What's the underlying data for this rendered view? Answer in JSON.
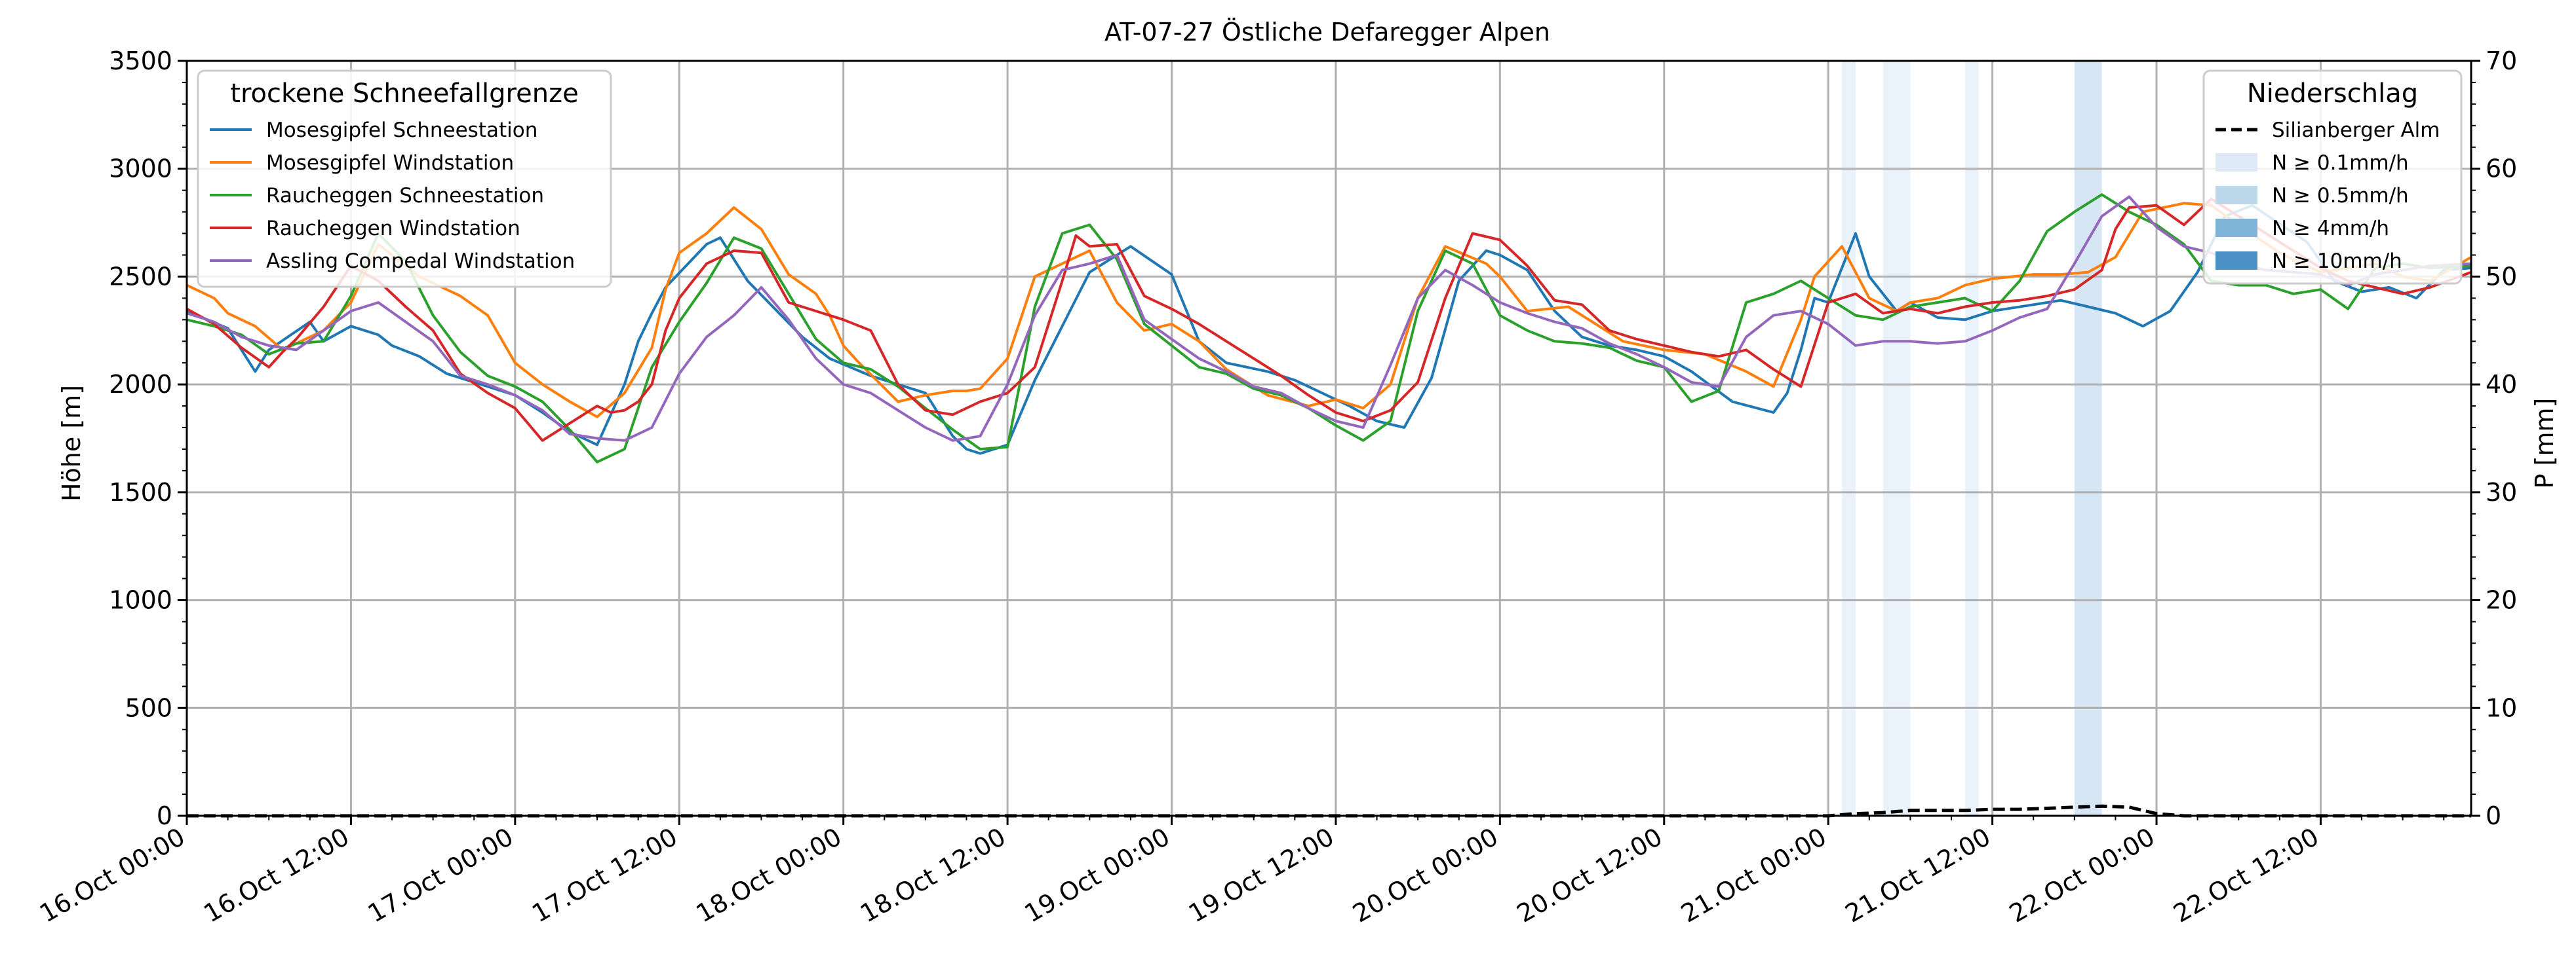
{
  "chart_data": {
    "type": "line",
    "title": "AT-07-27 Östliche Defaregger Alpen",
    "ylabel": "Höhe [m]",
    "y2label": "P [mm]",
    "ylim": [
      0,
      3500
    ],
    "y2lim": [
      0,
      70
    ],
    "yticks": [
      0,
      500,
      1000,
      1500,
      2000,
      2500,
      3000,
      3500
    ],
    "y2ticks": [
      0,
      10,
      20,
      30,
      40,
      50,
      60,
      70
    ],
    "xlim_hours": [
      0,
      167
    ],
    "xtick_labels": [
      "16.Oct 00:00",
      "16.Oct 12:00",
      "17.Oct 00:00",
      "17.Oct 12:00",
      "18.Oct 00:00",
      "18.Oct 12:00",
      "19.Oct 00:00",
      "19.Oct 12:00",
      "20.Oct 00:00",
      "20.Oct 12:00",
      "21.Oct 00:00",
      "21.Oct 12:00",
      "22.Oct 00:00",
      "22.Oct 12:00"
    ],
    "grid": true,
    "legend_left": {
      "title": "trockene Schneefallgrenze",
      "placement": "top-left"
    },
    "legend_right": {
      "title": "Niederschlag",
      "placement": "top-right",
      "items": [
        {
          "label": "Silianberger Alm",
          "style": "dashed",
          "color": "#000000"
        },
        {
          "label": "N ≥ 0.1mm/h",
          "color": "#deebf7"
        },
        {
          "label": "N ≥ 0.5mm/h",
          "color": "#bcd6ea"
        },
        {
          "label": "N ≥ 4mm/h",
          "color": "#7fb3d8"
        },
        {
          "label": "N ≥ 10mm/h",
          "color": "#4a90c4"
        }
      ]
    },
    "series": [
      {
        "name": "Mosesgipfel Schneestation",
        "color": "#1f77b4",
        "x": [
          0,
          3,
          5,
          6,
          9,
          10,
          12,
          14,
          15,
          17,
          19,
          21,
          22,
          24,
          26,
          28,
          30,
          32,
          33,
          34,
          35,
          38,
          39,
          41,
          45,
          47,
          50,
          54,
          56,
          57,
          58,
          60,
          62,
          66,
          69,
          72,
          74,
          76,
          79,
          81,
          83,
          85,
          87,
          89,
          91,
          93,
          95,
          96,
          98,
          100,
          102,
          104,
          106,
          108,
          110,
          113,
          116,
          117,
          118,
          119,
          120,
          122,
          123,
          124,
          125,
          126,
          128,
          130,
          132,
          135,
          137,
          139,
          141,
          143,
          145,
          147,
          149,
          151,
          155,
          157,
          159,
          161,
          163,
          165,
          167
        ],
        "y": [
          2340,
          2260,
          2060,
          2160,
          2290,
          2200,
          2270,
          2230,
          2180,
          2130,
          2050,
          2010,
          1990,
          1950,
          1870,
          1780,
          1720,
          2000,
          2200,
          2330,
          2450,
          2650,
          2680,
          2480,
          2220,
          2120,
          2040,
          1960,
          1760,
          1700,
          1680,
          1720,
          2020,
          2520,
          2640,
          2510,
          2200,
          2100,
          2060,
          2020,
          1960,
          1900,
          1830,
          1800,
          2030,
          2480,
          2620,
          2600,
          2530,
          2340,
          2220,
          2180,
          2160,
          2130,
          2060,
          1920,
          1870,
          1960,
          2160,
          2400,
          2380,
          2700,
          2500,
          2420,
          2340,
          2380,
          2310,
          2300,
          2340,
          2370,
          2390,
          2360,
          2330,
          2270,
          2340,
          2520,
          2780,
          2830,
          2660,
          2480,
          2430,
          2450,
          2400,
          2530,
          2540
        ]
      },
      {
        "name": "Mosesgipfel Windstation",
        "color": "#ff7f0e",
        "x": [
          0,
          2,
          3,
          5,
          7,
          10,
          12,
          14,
          17,
          20,
          22,
          24,
          26,
          28,
          30,
          32,
          34,
          35,
          36,
          38,
          40,
          42,
          44,
          46,
          47,
          48,
          49,
          52,
          54,
          56,
          57,
          58,
          60,
          62,
          66,
          68,
          70,
          72,
          74,
          76,
          79,
          82,
          84,
          86,
          88,
          90,
          92,
          95,
          96,
          98,
          101,
          105,
          108,
          111,
          114,
          116,
          118,
          119,
          121,
          123,
          125,
          126,
          128,
          130,
          132,
          135,
          137,
          139,
          141,
          143,
          146,
          148,
          150,
          153,
          156,
          158,
          160,
          162,
          164,
          167
        ],
        "y": [
          2460,
          2400,
          2330,
          2270,
          2160,
          2250,
          2380,
          2650,
          2500,
          2410,
          2320,
          2100,
          2000,
          1920,
          1850,
          1960,
          2170,
          2440,
          2610,
          2700,
          2820,
          2720,
          2510,
          2420,
          2320,
          2180,
          2110,
          1920,
          1950,
          1970,
          1970,
          1980,
          2120,
          2500,
          2620,
          2380,
          2250,
          2280,
          2200,
          2070,
          1950,
          1900,
          1930,
          1890,
          2000,
          2400,
          2640,
          2560,
          2500,
          2340,
          2360,
          2200,
          2160,
          2140,
          2060,
          1990,
          2300,
          2500,
          2640,
          2400,
          2340,
          2380,
          2400,
          2460,
          2490,
          2510,
          2510,
          2520,
          2590,
          2800,
          2840,
          2830,
          2740,
          2610,
          2520,
          2540,
          2560,
          2500,
          2480,
          2590
        ]
      },
      {
        "name": "Raucheggen Schneestation",
        "color": "#2ca02c",
        "x": [
          0,
          2,
          4,
          6,
          8,
          10,
          12,
          14,
          16,
          18,
          20,
          22,
          24,
          26,
          28,
          30,
          32,
          34,
          36,
          38,
          40,
          42,
          44,
          46,
          48,
          50,
          52,
          54,
          56,
          58,
          60,
          62,
          64,
          66,
          68,
          70,
          72,
          74,
          76,
          78,
          80,
          82,
          84,
          86,
          88,
          90,
          92,
          94,
          96,
          98,
          100,
          102,
          104,
          106,
          108,
          110,
          112,
          114,
          116,
          118,
          120,
          122,
          124,
          126,
          128,
          130,
          132,
          134,
          136,
          138,
          140,
          142,
          144,
          146,
          148,
          150,
          152,
          154,
          156,
          158,
          160,
          162,
          164,
          167
        ],
        "y": [
          2300,
          2270,
          2230,
          2140,
          2190,
          2200,
          2410,
          2700,
          2570,
          2320,
          2150,
          2040,
          1990,
          1920,
          1790,
          1640,
          1700,
          2080,
          2290,
          2470,
          2680,
          2630,
          2420,
          2210,
          2100,
          2070,
          1990,
          1890,
          1790,
          1700,
          1710,
          2360,
          2700,
          2740,
          2580,
          2280,
          2180,
          2080,
          2050,
          1980,
          1950,
          1890,
          1810,
          1740,
          1830,
          2340,
          2620,
          2560,
          2320,
          2250,
          2200,
          2190,
          2170,
          2110,
          2080,
          1920,
          1970,
          2380,
          2420,
          2480,
          2400,
          2320,
          2300,
          2360,
          2380,
          2400,
          2340,
          2480,
          2710,
          2800,
          2880,
          2800,
          2740,
          2650,
          2480,
          2460,
          2460,
          2420,
          2440,
          2350,
          2540,
          2560,
          2540,
          2550
        ]
      },
      {
        "name": "Raucheggen Windstation",
        "color": "#d62728",
        "x": [
          0,
          2,
          4,
          6,
          7,
          8,
          10,
          12,
          14,
          16,
          18,
          20,
          22,
          24,
          26,
          28,
          30,
          31,
          32,
          33,
          34,
          35,
          36,
          37,
          38,
          40,
          42,
          44,
          46,
          48,
          50,
          52,
          54,
          56,
          58,
          60,
          62,
          64,
          65,
          66,
          68,
          70,
          72,
          74,
          76,
          78,
          80,
          82,
          84,
          86,
          88,
          90,
          92,
          94,
          96,
          98,
          100,
          102,
          104,
          106,
          108,
          110,
          112,
          114,
          116,
          118,
          120,
          122,
          124,
          126,
          128,
          130,
          132,
          134,
          136,
          138,
          140,
          141,
          142,
          144,
          146,
          148,
          150,
          152,
          154,
          156,
          158,
          160,
          162,
          164,
          167
        ],
        "y": [
          2350,
          2280,
          2170,
          2080,
          2150,
          2210,
          2360,
          2550,
          2480,
          2360,
          2250,
          2050,
          1960,
          1890,
          1740,
          1820,
          1900,
          1870,
          1880,
          1920,
          2000,
          2250,
          2400,
          2480,
          2560,
          2620,
          2610,
          2380,
          2340,
          2300,
          2250,
          2000,
          1880,
          1860,
          1920,
          1960,
          2080,
          2480,
          2690,
          2640,
          2650,
          2410,
          2350,
          2280,
          2200,
          2120,
          2040,
          1950,
          1870,
          1830,
          1880,
          2010,
          2400,
          2700,
          2670,
          2550,
          2390,
          2370,
          2250,
          2210,
          2180,
          2150,
          2130,
          2160,
          2070,
          1990,
          2380,
          2420,
          2330,
          2350,
          2330,
          2360,
          2380,
          2390,
          2410,
          2440,
          2530,
          2720,
          2820,
          2830,
          2740,
          2860,
          2780,
          2700,
          2620,
          2540,
          2480,
          2450,
          2420,
          2450,
          2520
        ]
      },
      {
        "name": "Assling Compedal Windstation",
        "color": "#9467bd",
        "x": [
          0,
          2,
          4,
          6,
          8,
          10,
          12,
          14,
          16,
          18,
          20,
          22,
          24,
          26,
          28,
          30,
          32,
          34,
          36,
          38,
          40,
          42,
          44,
          46,
          48,
          50,
          52,
          54,
          56,
          58,
          60,
          62,
          64,
          66,
          68,
          70,
          72,
          74,
          76,
          78,
          80,
          82,
          84,
          86,
          88,
          90,
          92,
          94,
          96,
          98,
          100,
          102,
          104,
          106,
          108,
          110,
          112,
          114,
          116,
          118,
          120,
          122,
          124,
          126,
          128,
          130,
          132,
          134,
          136,
          138,
          140,
          142,
          144,
          146,
          148,
          150,
          152,
          154,
          156,
          158,
          160,
          162,
          164,
          167
        ],
        "y": [
          2330,
          2290,
          2220,
          2180,
          2160,
          2250,
          2340,
          2380,
          2290,
          2200,
          2040,
          2000,
          1950,
          1880,
          1770,
          1750,
          1740,
          1800,
          2050,
          2220,
          2320,
          2450,
          2300,
          2120,
          2000,
          1960,
          1880,
          1800,
          1740,
          1760,
          2000,
          2320,
          2530,
          2560,
          2600,
          2300,
          2210,
          2120,
          2060,
          1990,
          1960,
          1890,
          1830,
          1800,
          2090,
          2400,
          2530,
          2460,
          2380,
          2330,
          2290,
          2260,
          2190,
          2140,
          2080,
          2010,
          1990,
          2220,
          2320,
          2340,
          2280,
          2180,
          2200,
          2200,
          2190,
          2200,
          2250,
          2310,
          2350,
          2560,
          2780,
          2870,
          2730,
          2640,
          2610,
          2560,
          2530,
          2520,
          2510,
          2460,
          2510,
          2530,
          2550,
          2560
        ]
      },
      {
        "name": "Silianberger Alm",
        "axis": "right",
        "style": "dashed",
        "color": "#000000",
        "x": [
          0,
          120,
          122,
          124,
          126,
          128,
          130,
          132,
          134,
          136,
          138,
          140,
          142,
          144,
          146,
          148,
          150,
          152,
          154,
          156,
          158,
          160,
          162,
          164,
          167
        ],
        "y": [
          0,
          0,
          0.2,
          0.3,
          0.5,
          0.5,
          0.5,
          0.6,
          0.6,
          0.7,
          0.8,
          0.9,
          0.8,
          0.2,
          0,
          0,
          0,
          0,
          0,
          0,
          0,
          0,
          0,
          0,
          0
        ]
      }
    ],
    "precip_bands": [
      {
        "start_h": 121.0,
        "end_h": 122.0,
        "level": 1
      },
      {
        "start_h": 124.0,
        "end_h": 126.0,
        "level": 1
      },
      {
        "start_h": 130.0,
        "end_h": 131.0,
        "level": 1
      },
      {
        "start_h": 138.0,
        "end_h": 140.0,
        "level": 2
      }
    ]
  }
}
